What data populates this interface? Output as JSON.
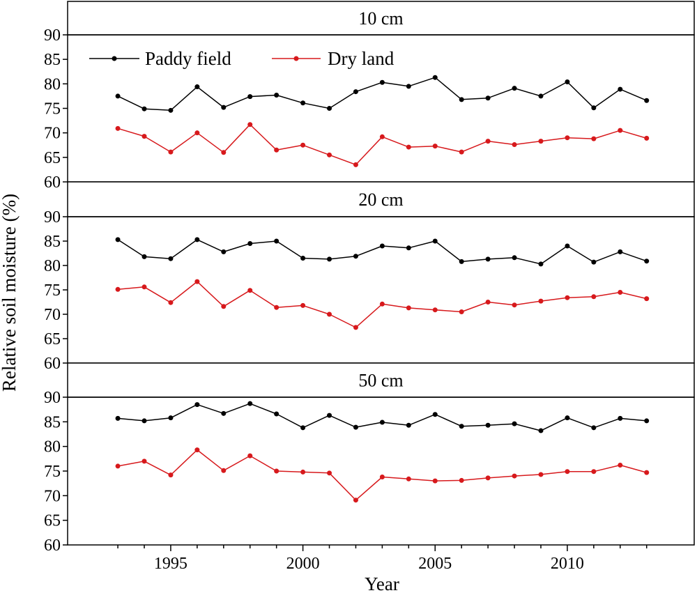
{
  "chart_data": {
    "type": "line",
    "xlabel": "Year",
    "ylabel": "Relative soil moisture (%)",
    "x_ticks": [
      1995,
      2000,
      2005,
      2010
    ],
    "y_ticks": [
      60,
      65,
      70,
      75,
      80,
      85,
      90
    ],
    "xlim": [
      1991.1,
      2014.8
    ],
    "ylim": [
      60,
      90
    ],
    "legend": {
      "placement": "top-left",
      "panel": 0
    },
    "colors": {
      "paddy": "#000000",
      "dry": "#d7191c"
    },
    "x": [
      1993,
      1994,
      1995,
      1996,
      1997,
      1998,
      1999,
      2000,
      2001,
      2002,
      2003,
      2004,
      2005,
      2006,
      2007,
      2008,
      2009,
      2010,
      2011,
      2012,
      2013
    ],
    "panels": [
      {
        "title": "10 cm",
        "series": [
          {
            "name": "Paddy field",
            "color_key": "paddy",
            "values": [
              77.5,
              74.9,
              74.6,
              79.4,
              75.2,
              77.4,
              77.7,
              76.1,
              75.0,
              78.4,
              80.3,
              79.5,
              81.3,
              76.8,
              77.1,
              79.1,
              77.5,
              80.4,
              75.1,
              78.9,
              76.6
            ]
          },
          {
            "name": "Dry land",
            "color_key": "dry",
            "values": [
              70.9,
              69.3,
              66.1,
              70.0,
              66.0,
              71.7,
              66.5,
              67.5,
              65.5,
              63.5,
              69.2,
              67.1,
              67.3,
              66.1,
              68.3,
              67.6,
              68.3,
              69.0,
              68.8,
              70.5,
              68.9
            ]
          }
        ]
      },
      {
        "title": "20 cm",
        "series": [
          {
            "name": "Paddy field",
            "color_key": "paddy",
            "values": [
              85.3,
              81.8,
              81.4,
              85.3,
              82.8,
              84.5,
              85.0,
              81.5,
              81.3,
              81.9,
              84.0,
              83.6,
              85.0,
              80.8,
              81.3,
              81.6,
              80.3,
              84.0,
              80.7,
              82.8,
              80.9
            ]
          },
          {
            "name": "Dry land",
            "color_key": "dry",
            "values": [
              75.1,
              75.6,
              72.4,
              76.7,
              71.6,
              74.9,
              71.4,
              71.8,
              70.0,
              67.3,
              72.1,
              71.3,
              70.9,
              70.5,
              72.5,
              71.9,
              72.7,
              73.4,
              73.6,
              74.5,
              73.2
            ]
          }
        ]
      },
      {
        "title": "50 cm",
        "series": [
          {
            "name": "Paddy field",
            "color_key": "paddy",
            "values": [
              85.7,
              85.2,
              85.8,
              88.5,
              86.7,
              88.7,
              86.6,
              83.8,
              86.3,
              83.9,
              84.9,
              84.3,
              86.5,
              84.1,
              84.3,
              84.6,
              83.2,
              85.8,
              83.8,
              85.7,
              85.2
            ]
          },
          {
            "name": "Dry land",
            "color_key": "dry",
            "values": [
              76.0,
              77.0,
              74.2,
              79.3,
              75.1,
              78.1,
              75.0,
              74.8,
              74.6,
              69.1,
              73.8,
              73.4,
              73.0,
              73.1,
              73.6,
              74.0,
              74.3,
              74.9,
              74.9,
              76.2,
              74.7
            ]
          }
        ]
      }
    ]
  }
}
